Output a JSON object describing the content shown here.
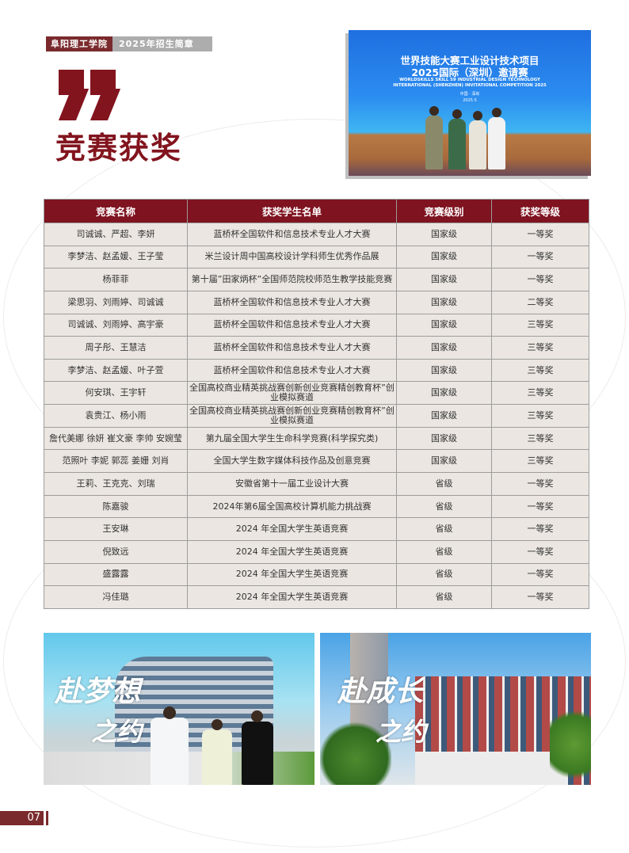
{
  "header": {
    "school": "阜阳理工学院",
    "subtitle": "2025年招生简章"
  },
  "page_title": "竞赛获奖",
  "top_photo": {
    "title_line1": "世界技能大赛工业设计技术项目",
    "title_line2": "2025国际（深圳）邀请赛",
    "english_line1": "WORLDSKILLS SKILL 59 INDUSTRIAL DESIGN TECHNOLOGY",
    "english_line2": "INTERNATIONAL (SHENZHEN) INVITATIONAL COMPETITION 2025",
    "location": "中国 · 深圳",
    "date": "2025.5"
  },
  "table": {
    "headers": [
      "竞赛名称",
      "获奖学生名单",
      "竞赛级别",
      "获奖等级"
    ],
    "rows": [
      [
        "司诚诚、严超、李妍",
        "蓝桥杯全国软件和信息技术专业人才大赛",
        "国家级",
        "一等奖"
      ],
      [
        "李梦洁、赵孟媛、王子莹",
        "米兰设计周中国高校设计学科师生优秀作品展",
        "国家级",
        "一等奖"
      ],
      [
        "杨菲菲",
        "第十届”田家炳杯”全国师范院校师范生教学技能竞赛",
        "国家级",
        "一等奖"
      ],
      [
        "梁思羽、刘雨婷、司诚诚",
        "蓝桥杯全国软件和信息技术专业人才大赛",
        "国家级",
        "二等奖"
      ],
      [
        "司诚诚、刘雨婷、高宇豪",
        "蓝桥杯全国软件和信息技术专业人才大赛",
        "国家级",
        "三等奖"
      ],
      [
        "周子彤、王慧洁",
        "蓝桥杯全国软件和信息技术专业人才大赛",
        "国家级",
        "三等奖"
      ],
      [
        "李梦洁、赵孟媛、叶子萱",
        "蓝桥杯全国软件和信息技术专业人才大赛",
        "国家级",
        "三等奖"
      ],
      [
        "何安琪、王宇轩",
        "全国高校商业精英挑战赛创新创业竞赛精创教育杯”创业模拟赛道",
        "国家级",
        "三等奖"
      ],
      [
        "袁贵江、杨小雨",
        "全国高校商业精英挑战赛创新创业竞赛精创教育杯”创业模拟赛道",
        "国家级",
        "三等奖"
      ],
      [
        "詹代美娜 徐妍 崔文豪 李帅 安婉莹",
        "第九届全国大学生生命科学竞赛(科学探究类)",
        "国家级",
        "三等奖"
      ],
      [
        "范照叶 李妮 郭蕊 姜姗 刘肖",
        "全国大学生数字媒体科技作品及创意竞赛",
        "国家级",
        "三等奖"
      ],
      [
        "王莉、王克克、刘瑞",
        "安徽省第十一届工业设计大赛",
        "省级",
        "一等奖"
      ],
      [
        "陈嘉骏",
        "2024年第6届全国高校计算机能力挑战赛",
        "省级",
        "一等奖"
      ],
      [
        "王安琳",
        "2024 年全国大学生英语竞赛",
        "省级",
        "一等奖"
      ],
      [
        "倪致远",
        "2024 年全国大学生英语竞赛",
        "省级",
        "一等奖"
      ],
      [
        "盛露露",
        "2024 年全国大学生英语竞赛",
        "省级",
        "一等奖"
      ],
      [
        "冯佳璐",
        "2024 年全国大学生英语竞赛",
        "省级",
        "一等奖"
      ]
    ]
  },
  "bottom_photos": [
    {
      "calligraphy_line1": "赴梦想",
      "calligraphy_line2": "之约"
    },
    {
      "calligraphy_line1": "赴成长",
      "calligraphy_line2": "之约"
    }
  ],
  "page_number": "07",
  "colors": {
    "brand": "#7f1320",
    "tag_gray": "#adadad",
    "table_bg": "#ebe6e1"
  }
}
